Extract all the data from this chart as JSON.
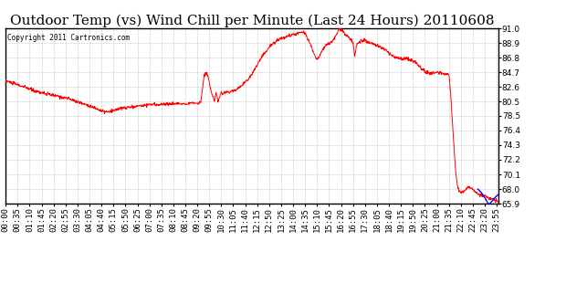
{
  "title": "Outdoor Temp (vs) Wind Chill per Minute (Last 24 Hours) 20110608",
  "copyright": "Copyright 2011 Cartronics.com",
  "ylim": [
    65.9,
    91.0
  ],
  "yticks": [
    65.9,
    68.0,
    70.1,
    72.2,
    74.3,
    76.4,
    78.5,
    80.5,
    82.6,
    84.7,
    86.8,
    88.9,
    91.0
  ],
  "background_color": "#ffffff",
  "plot_bg_color": "#ffffff",
  "grid_color": "#aaaaaa",
  "line_color_red": "#ff0000",
  "line_color_blue": "#0000ff",
  "title_fontsize": 11,
  "tick_fontsize": 6.5,
  "xtick_labels": [
    "00:00",
    "00:35",
    "01:10",
    "01:45",
    "02:20",
    "02:55",
    "03:30",
    "04:05",
    "04:40",
    "05:15",
    "05:50",
    "06:25",
    "07:00",
    "07:35",
    "08:10",
    "08:45",
    "09:20",
    "09:55",
    "10:30",
    "11:05",
    "11:40",
    "12:15",
    "12:50",
    "13:25",
    "14:00",
    "14:35",
    "15:10",
    "15:45",
    "16:20",
    "16:55",
    "17:30",
    "18:05",
    "18:40",
    "19:15",
    "19:50",
    "20:25",
    "21:00",
    "21:35",
    "22:10",
    "22:45",
    "23:20",
    "23:55"
  ],
  "red_control_points": [
    [
      0,
      83.5
    ],
    [
      30,
      83.0
    ],
    [
      60,
      82.5
    ],
    [
      90,
      82.0
    ],
    [
      120,
      81.6
    ],
    [
      150,
      81.3
    ],
    [
      180,
      81.0
    ],
    [
      210,
      80.5
    ],
    [
      240,
      80.0
    ],
    [
      270,
      79.4
    ],
    [
      285,
      79.1
    ],
    [
      300,
      79.0
    ],
    [
      315,
      79.2
    ],
    [
      330,
      79.5
    ],
    [
      360,
      79.7
    ],
    [
      390,
      79.9
    ],
    [
      420,
      80.1
    ],
    [
      450,
      80.1
    ],
    [
      480,
      80.2
    ],
    [
      510,
      80.2
    ],
    [
      540,
      80.3
    ],
    [
      560,
      80.3
    ],
    [
      570,
      80.3
    ],
    [
      580,
      80.4
    ],
    [
      590,
      80.4
    ],
    [
      600,
      80.4
    ],
    [
      610,
      80.5
    ],
    [
      620,
      80.5
    ],
    [
      570,
      80.4
    ],
    [
      580,
      84.3
    ],
    [
      590,
      84.5
    ],
    [
      600,
      82.0
    ],
    [
      615,
      81.8
    ],
    [
      630,
      81.7
    ],
    [
      645,
      81.8
    ],
    [
      660,
      82.0
    ],
    [
      675,
      82.3
    ],
    [
      690,
      82.8
    ],
    [
      705,
      83.5
    ],
    [
      720,
      84.5
    ],
    [
      735,
      85.8
    ],
    [
      750,
      87.0
    ],
    [
      765,
      88.0
    ],
    [
      780,
      88.8
    ],
    [
      795,
      89.3
    ],
    [
      810,
      89.7
    ],
    [
      825,
      89.9
    ],
    [
      840,
      90.1
    ],
    [
      855,
      90.3
    ],
    [
      865,
      90.5
    ],
    [
      870,
      90.5
    ],
    [
      875,
      90.3
    ],
    [
      880,
      89.8
    ],
    [
      885,
      89.3
    ],
    [
      890,
      88.8
    ],
    [
      895,
      88.2
    ],
    [
      900,
      87.5
    ],
    [
      905,
      87.0
    ],
    [
      910,
      86.5
    ],
    [
      915,
      86.8
    ],
    [
      920,
      87.3
    ],
    [
      925,
      87.8
    ],
    [
      930,
      88.2
    ],
    [
      935,
      88.5
    ],
    [
      940,
      88.7
    ],
    [
      945,
      88.8
    ],
    [
      950,
      89.0
    ],
    [
      955,
      89.2
    ],
    [
      960,
      89.5
    ],
    [
      965,
      90.0
    ],
    [
      970,
      90.5
    ],
    [
      975,
      91.0
    ],
    [
      980,
      90.8
    ],
    [
      985,
      90.6
    ],
    [
      990,
      90.3
    ],
    [
      995,
      90.0
    ],
    [
      1000,
      89.8
    ],
    [
      1005,
      89.5
    ],
    [
      1010,
      89.3
    ],
    [
      1015,
      89.0
    ],
    [
      1020,
      87.0
    ],
    [
      1025,
      88.5
    ],
    [
      1030,
      89.0
    ],
    [
      1035,
      89.2
    ],
    [
      1040,
      89.3
    ],
    [
      1045,
      89.3
    ],
    [
      1050,
      89.2
    ],
    [
      1060,
      89.0
    ],
    [
      1070,
      88.8
    ],
    [
      1080,
      88.6
    ],
    [
      1090,
      88.4
    ],
    [
      1100,
      88.2
    ],
    [
      1110,
      87.9
    ],
    [
      1120,
      87.5
    ],
    [
      1130,
      87.0
    ],
    [
      1140,
      86.8
    ],
    [
      1150,
      86.7
    ],
    [
      1160,
      86.5
    ],
    [
      1170,
      86.8
    ],
    [
      1180,
      86.5
    ],
    [
      1190,
      86.3
    ],
    [
      1200,
      86.0
    ],
    [
      1210,
      85.5
    ],
    [
      1220,
      85.0
    ],
    [
      1230,
      84.7
    ],
    [
      1240,
      84.6
    ],
    [
      1250,
      84.6
    ],
    [
      1260,
      84.6
    ],
    [
      1270,
      84.6
    ],
    [
      1280,
      84.5
    ],
    [
      1290,
      84.5
    ],
    [
      1295,
      84.5
    ],
    [
      1300,
      82.0
    ],
    [
      1305,
      78.0
    ],
    [
      1310,
      74.0
    ],
    [
      1315,
      70.5
    ],
    [
      1320,
      68.5
    ],
    [
      1325,
      67.8
    ],
    [
      1330,
      67.5
    ],
    [
      1335,
      67.5
    ],
    [
      1340,
      67.8
    ],
    [
      1345,
      68.0
    ],
    [
      1350,
      68.2
    ],
    [
      1355,
      68.3
    ],
    [
      1360,
      68.2
    ],
    [
      1365,
      68.0
    ],
    [
      1370,
      67.8
    ],
    [
      1375,
      67.5
    ],
    [
      1380,
      67.3
    ],
    [
      1390,
      67.1
    ],
    [
      1400,
      67.0
    ],
    [
      1410,
      66.8
    ],
    [
      1420,
      66.6
    ],
    [
      1430,
      66.4
    ],
    [
      1439,
      66.2
    ]
  ],
  "blue_control_points": [
    [
      1380,
      68.0
    ],
    [
      1390,
      67.5
    ],
    [
      1400,
      66.8
    ],
    [
      1410,
      65.9
    ],
    [
      1415,
      65.9
    ],
    [
      1420,
      66.2
    ],
    [
      1425,
      66.5
    ],
    [
      1430,
      66.8
    ],
    [
      1435,
      67.0
    ],
    [
      1439,
      67.2
    ]
  ]
}
